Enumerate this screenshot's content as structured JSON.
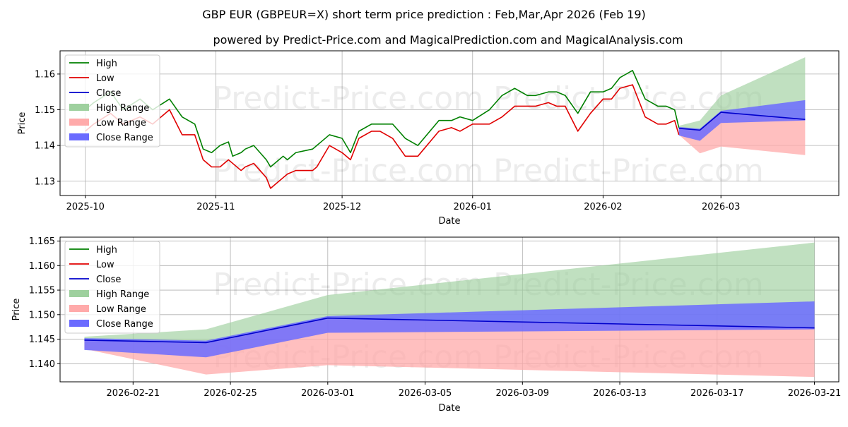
{
  "title": "GBP EUR (GBPEUR=X) short term price prediction : Feb,Mar,Apr 2026 (Feb 19)",
  "subtitle": "powered by Predict-Price.com and MagicalPrediction.com and MagicalAnalysis.com",
  "watermark": "Predict-Price.com",
  "colors": {
    "high": "#008000",
    "low": "#e00000",
    "close": "#0000cc",
    "high_range": "#9ed09e",
    "low_range": "#ffaaaa",
    "close_range": "#6b6bff"
  },
  "chart_data": [
    {
      "type": "line",
      "panel": "top",
      "xlabel": "Date",
      "ylabel": "Price",
      "grid": true,
      "legend_position": "top-left",
      "legend": [
        "High",
        "Low",
        "Close",
        "High Range",
        "Low Range",
        "Close Range"
      ],
      "xlim": [
        "2025-09-25",
        "2026-03-29"
      ],
      "ylim": [
        1.126,
        1.1665
      ],
      "x_ticks": [
        "2025-10-01",
        "2025-11-01",
        "2025-12-01",
        "2026-01-01",
        "2026-02-01",
        "2026-03-01"
      ],
      "x_tick_labels": [
        "2025-10",
        "2025-11",
        "2025-12",
        "2026-01",
        "2026-02",
        "2026-03"
      ],
      "y_ticks": [
        1.13,
        1.14,
        1.15,
        1.16
      ],
      "y_tick_labels": [
        "1.13",
        "1.14",
        "1.15",
        "1.16"
      ],
      "series": [
        {
          "name": "High",
          "dates": [
            "2025-10-01",
            "2025-10-03",
            "2025-10-07",
            "2025-10-10",
            "2025-10-14",
            "2025-10-17",
            "2025-10-21",
            "2025-10-24",
            "2025-10-27",
            "2025-10-29",
            "2025-10-31",
            "2025-11-02",
            "2025-11-04",
            "2025-11-05",
            "2025-11-07",
            "2025-11-08",
            "2025-11-10",
            "2025-11-13",
            "2025-11-14",
            "2025-11-17",
            "2025-11-18",
            "2025-11-20",
            "2025-11-24",
            "2025-11-25",
            "2025-11-26",
            "2025-11-28",
            "2025-12-01",
            "2025-12-03",
            "2025-12-05",
            "2025-12-08",
            "2025-12-10",
            "2025-12-13",
            "2025-12-16",
            "2025-12-19",
            "2025-12-24",
            "2025-12-27",
            "2025-12-29",
            "2026-01-01",
            "2026-01-05",
            "2026-01-08",
            "2026-01-11",
            "2026-01-14",
            "2026-01-16",
            "2026-01-19",
            "2026-01-21",
            "2026-01-23",
            "2026-01-26",
            "2026-01-29",
            "2026-02-01",
            "2026-02-03",
            "2026-02-05",
            "2026-02-08",
            "2026-02-11",
            "2026-02-14",
            "2026-02-16",
            "2026-02-18",
            "2026-02-19"
          ],
          "values": [
            1.15,
            1.152,
            1.155,
            1.15,
            1.153,
            1.15,
            1.153,
            1.148,
            1.146,
            1.139,
            1.138,
            1.14,
            1.141,
            1.137,
            1.138,
            1.139,
            1.14,
            1.136,
            1.134,
            1.137,
            1.136,
            1.138,
            1.139,
            1.14,
            1.141,
            1.143,
            1.142,
            1.138,
            1.144,
            1.146,
            1.146,
            1.146,
            1.142,
            1.14,
            1.147,
            1.147,
            1.148,
            1.147,
            1.15,
            1.154,
            1.156,
            1.154,
            1.154,
            1.155,
            1.155,
            1.154,
            1.149,
            1.155,
            1.155,
            1.156,
            1.159,
            1.161,
            1.153,
            1.151,
            1.151,
            1.15,
            1.145
          ]
        },
        {
          "name": "Low",
          "dates": [
            "2025-10-01",
            "2025-10-03",
            "2025-10-07",
            "2025-10-10",
            "2025-10-14",
            "2025-10-17",
            "2025-10-21",
            "2025-10-24",
            "2025-10-27",
            "2025-10-29",
            "2025-10-31",
            "2025-11-02",
            "2025-11-04",
            "2025-11-05",
            "2025-11-07",
            "2025-11-08",
            "2025-11-10",
            "2025-11-13",
            "2025-11-14",
            "2025-11-17",
            "2025-11-18",
            "2025-11-20",
            "2025-11-24",
            "2025-11-25",
            "2025-11-26",
            "2025-11-28",
            "2025-12-01",
            "2025-12-03",
            "2025-12-05",
            "2025-12-08",
            "2025-12-10",
            "2025-12-13",
            "2025-12-16",
            "2025-12-19",
            "2025-12-24",
            "2025-12-27",
            "2025-12-29",
            "2026-01-01",
            "2026-01-05",
            "2026-01-08",
            "2026-01-11",
            "2026-01-14",
            "2026-01-16",
            "2026-01-19",
            "2026-01-21",
            "2026-01-23",
            "2026-01-26",
            "2026-01-29",
            "2026-02-01",
            "2026-02-03",
            "2026-02-05",
            "2026-02-08",
            "2026-02-11",
            "2026-02-14",
            "2026-02-16",
            "2026-02-18",
            "2026-02-19"
          ],
          "values": [
            1.144,
            1.146,
            1.149,
            1.146,
            1.148,
            1.146,
            1.15,
            1.143,
            1.143,
            1.136,
            1.134,
            1.134,
            1.136,
            1.135,
            1.133,
            1.134,
            1.135,
            1.131,
            1.128,
            1.131,
            1.132,
            1.133,
            1.133,
            1.134,
            1.136,
            1.14,
            1.138,
            1.136,
            1.142,
            1.144,
            1.144,
            1.142,
            1.137,
            1.137,
            1.144,
            1.145,
            1.144,
            1.146,
            1.146,
            1.148,
            1.151,
            1.151,
            1.151,
            1.152,
            1.151,
            1.151,
            1.144,
            1.149,
            1.153,
            1.153,
            1.156,
            1.157,
            1.148,
            1.146,
            1.146,
            1.147,
            1.143
          ]
        },
        {
          "name": "Close",
          "dates": [
            "2026-02-19",
            "2026-02-24",
            "2026-03-01",
            "2026-03-21"
          ],
          "values": [
            1.1448,
            1.1443,
            1.1493,
            1.1473
          ]
        }
      ],
      "ranges": [
        {
          "name": "High Range",
          "dates": [
            "2026-02-19",
            "2026-02-24",
            "2026-03-01",
            "2026-03-21"
          ],
          "upper": [
            1.1455,
            1.147,
            1.154,
            1.1647
          ],
          "lower": [
            1.1448,
            1.1443,
            1.1493,
            1.1473
          ]
        },
        {
          "name": "Low Range",
          "dates": [
            "2026-02-19",
            "2026-02-24",
            "2026-03-01",
            "2026-03-21"
          ],
          "upper": [
            1.1448,
            1.1443,
            1.1493,
            1.1473
          ],
          "lower": [
            1.143,
            1.1378,
            1.1397,
            1.1373
          ]
        },
        {
          "name": "Close Range",
          "dates": [
            "2026-02-19",
            "2026-02-24",
            "2026-03-01",
            "2026-03-21"
          ],
          "upper": [
            1.1452,
            1.1447,
            1.1497,
            1.1527
          ],
          "lower": [
            1.1428,
            1.1413,
            1.1463,
            1.147
          ]
        }
      ]
    },
    {
      "type": "line",
      "panel": "bottom",
      "xlabel": "Date",
      "ylabel": "Price",
      "grid": true,
      "legend_position": "top-left",
      "legend": [
        "High",
        "Low",
        "Close",
        "High Range",
        "Low Range",
        "Close Range"
      ],
      "xlim": [
        "2026-02-18",
        "2026-03-22"
      ],
      "ylim": [
        1.1363,
        1.1658
      ],
      "x_ticks": [
        "2026-02-21",
        "2026-02-25",
        "2026-03-01",
        "2026-03-05",
        "2026-03-09",
        "2026-03-13",
        "2026-03-17",
        "2026-03-21"
      ],
      "x_tick_labels": [
        "2026-02-21",
        "2026-02-25",
        "2026-03-01",
        "2026-03-05",
        "2026-03-09",
        "2026-03-13",
        "2026-03-17",
        "2026-03-21"
      ],
      "y_ticks": [
        1.14,
        1.145,
        1.15,
        1.155,
        1.16,
        1.165
      ],
      "y_tick_labels": [
        "1.140",
        "1.145",
        "1.150",
        "1.155",
        "1.160",
        "1.165"
      ],
      "series": [
        {
          "name": "Close",
          "dates": [
            "2026-02-19",
            "2026-02-24",
            "2026-03-01",
            "2026-03-21"
          ],
          "values": [
            1.1448,
            1.1443,
            1.1493,
            1.1473
          ]
        }
      ],
      "ranges": [
        {
          "name": "High Range",
          "dates": [
            "2026-02-19",
            "2026-02-24",
            "2026-03-01",
            "2026-03-21"
          ],
          "upper": [
            1.1455,
            1.147,
            1.154,
            1.1647
          ],
          "lower": [
            1.1448,
            1.1443,
            1.1493,
            1.1473
          ]
        },
        {
          "name": "Low Range",
          "dates": [
            "2026-02-19",
            "2026-02-24",
            "2026-03-01",
            "2026-03-21"
          ],
          "upper": [
            1.1448,
            1.1443,
            1.1493,
            1.1473
          ],
          "lower": [
            1.143,
            1.1378,
            1.1397,
            1.1373
          ]
        },
        {
          "name": "Close Range",
          "dates": [
            "2026-02-19",
            "2026-02-24",
            "2026-03-01",
            "2026-03-21"
          ],
          "upper": [
            1.1452,
            1.1447,
            1.1497,
            1.1527
          ],
          "lower": [
            1.1428,
            1.1413,
            1.1463,
            1.147
          ]
        }
      ]
    }
  ]
}
